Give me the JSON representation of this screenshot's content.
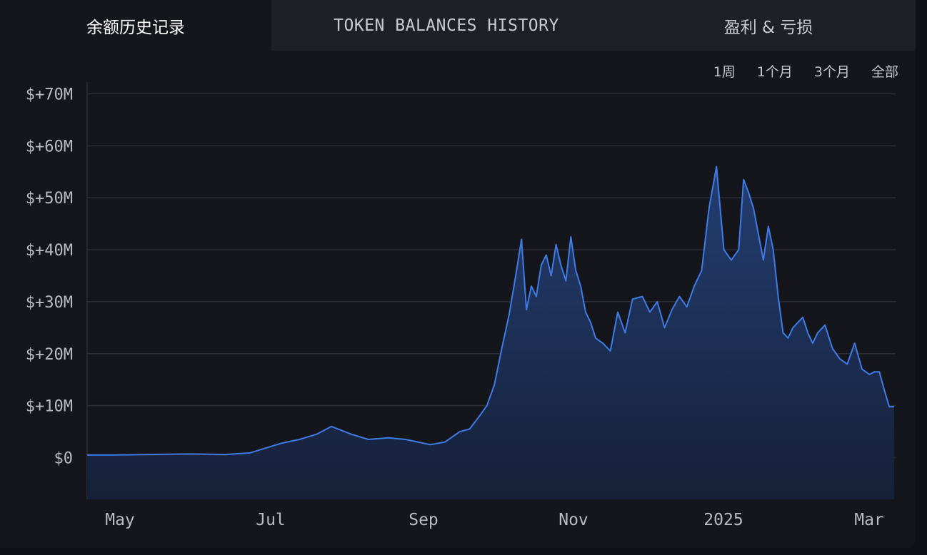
{
  "tabs": [
    "余额历史记录",
    "TOKEN BALANCES HISTORY",
    "盈利 & 亏损"
  ],
  "ranges": [
    "1周",
    "1个月",
    "3个月",
    "全部"
  ],
  "colors": {
    "line": "#3f7be6",
    "fill_top": "#233e72",
    "fill_bottom": "#162038",
    "grid": "#2c2e36",
    "accent_tab": "#15161c"
  },
  "chart_data": {
    "type": "area",
    "y_tick_labels": [
      "$+70M",
      "$+60M",
      "$+50M",
      "$+40M",
      "$+30M",
      "$+20M",
      "$+10M",
      "$0"
    ],
    "y_ticks": [
      70,
      60,
      50,
      40,
      30,
      20,
      10,
      0
    ],
    "ylim": [
      -8,
      72
    ],
    "y_unit": "M USD",
    "x_tick_labels": [
      "May",
      "Jul",
      "Sep",
      "Nov",
      "2025",
      "Mar"
    ],
    "grid": true,
    "x": [
      "2024-04-20",
      "2024-05-01",
      "2024-05-15",
      "2024-06-01",
      "2024-06-15",
      "2024-06-25",
      "2024-07-01",
      "2024-07-08",
      "2024-07-15",
      "2024-07-22",
      "2024-07-28",
      "2024-08-05",
      "2024-08-12",
      "2024-08-20",
      "2024-08-27",
      "2024-09-01",
      "2024-09-06",
      "2024-09-12",
      "2024-09-18",
      "2024-09-22",
      "2024-09-26",
      "2024-09-29",
      "2024-10-02",
      "2024-10-05",
      "2024-10-08",
      "2024-10-11",
      "2024-10-13",
      "2024-10-15",
      "2024-10-17",
      "2024-10-19",
      "2024-10-21",
      "2024-10-23",
      "2024-10-25",
      "2024-10-27",
      "2024-10-29",
      "2024-10-31",
      "2024-11-02",
      "2024-11-04",
      "2024-11-06",
      "2024-11-08",
      "2024-11-10",
      "2024-11-12",
      "2024-11-15",
      "2024-11-18",
      "2024-11-21",
      "2024-11-24",
      "2024-11-27",
      "2024-12-01",
      "2024-12-04",
      "2024-12-07",
      "2024-12-10",
      "2024-12-13",
      "2024-12-16",
      "2024-12-19",
      "2024-12-22",
      "2024-12-25",
      "2024-12-28",
      "2024-12-31",
      "2025-01-03",
      "2025-01-06",
      "2025-01-09",
      "2025-01-11",
      "2025-01-13",
      "2025-01-15",
      "2025-01-17",
      "2025-01-19",
      "2025-01-21",
      "2025-01-23",
      "2025-01-25",
      "2025-01-27",
      "2025-01-29",
      "2025-01-31",
      "2025-02-02",
      "2025-02-04",
      "2025-02-06",
      "2025-02-08",
      "2025-02-10",
      "2025-02-13",
      "2025-02-16",
      "2025-02-19",
      "2025-02-22",
      "2025-02-25",
      "2025-02-28",
      "2025-03-03",
      "2025-03-05",
      "2025-03-07",
      "2025-03-09",
      "2025-03-11",
      "2025-03-12",
      "2025-03-13"
    ],
    "series": [
      {
        "values": [
          0.5,
          0.5,
          0.6,
          0.7,
          0.6,
          0.9,
          1.8,
          2.8,
          3.5,
          4.5,
          6.0,
          4.5,
          3.5,
          3.8,
          3.5,
          3.0,
          2.5,
          3.0,
          5.0,
          5.5,
          8.0,
          10.0,
          14.0,
          21.0,
          27.5,
          36.0,
          42.0,
          28.5,
          33.0,
          31.0,
          37.0,
          39.0,
          35.0,
          41.0,
          37.0,
          34.0,
          42.5,
          36.0,
          33.0,
          28.0,
          26.0,
          23.0,
          22.0,
          20.5,
          28.0,
          24.0,
          30.5,
          31.0,
          28.0,
          30.0,
          25.0,
          28.5,
          31.0,
          29.0,
          33.0,
          36.0,
          48.0,
          56.0,
          40.0,
          38.0,
          40.0,
          53.5,
          51.0,
          48.0,
          43.0,
          38.0,
          44.5,
          40.0,
          31.0,
          24.0,
          23.0,
          25.0,
          26.0,
          27.0,
          24.0,
          22.0,
          24.0,
          25.5,
          21.0,
          19.0,
          18.0,
          22.0,
          17.0,
          16.0,
          16.5,
          16.5,
          13.0,
          9.8,
          9.8,
          9.8
        ]
      }
    ]
  }
}
